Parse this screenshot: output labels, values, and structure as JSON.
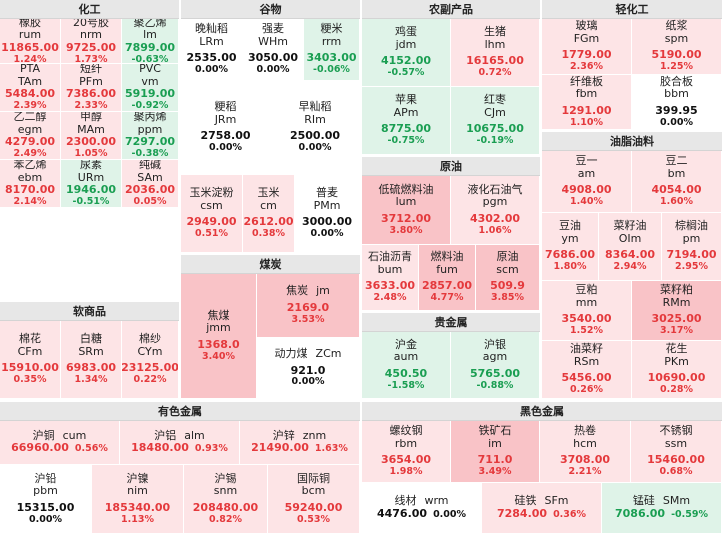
{
  "panels": [
    {
      "id": "chemical",
      "title": "化工",
      "box": [
        0,
        0,
        179,
        300
      ],
      "tiles": [
        {
          "name": "橡胶",
          "code": "rum",
          "price": "11865.00",
          "pct": "1.24%",
          "dir": "up",
          "layout": "v",
          "pos": [
            0,
            19,
            61,
            45
          ]
        },
        {
          "name": "20号胶",
          "code": "nrm",
          "price": "9725.00",
          "pct": "1.73%",
          "dir": "up",
          "layout": "v",
          "pos": [
            61,
            19,
            61,
            45
          ]
        },
        {
          "name": "聚乙烯",
          "code": "lm",
          "price": "7899.00",
          "pct": "-0.63%",
          "dir": "dn",
          "layout": "v",
          "pos": [
            122,
            19,
            57,
            45
          ]
        },
        {
          "name": "PTA",
          "code": "TAm",
          "price": "5484.00",
          "pct": "2.39%",
          "dir": "up",
          "layout": "v",
          "pos": [
            0,
            64,
            61,
            48
          ]
        },
        {
          "name": "短纤",
          "code": "PFm",
          "price": "7386.00",
          "pct": "2.33%",
          "dir": "up",
          "layout": "v",
          "pos": [
            61,
            64,
            61,
            48
          ]
        },
        {
          "name": "PVC",
          "code": "vm",
          "price": "5919.00",
          "pct": "-0.92%",
          "dir": "dn",
          "layout": "v",
          "pos": [
            122,
            64,
            57,
            48
          ]
        },
        {
          "name": "乙二醇",
          "code": "egm",
          "price": "4279.00",
          "pct": "2.49%",
          "dir": "up",
          "layout": "v",
          "pos": [
            0,
            112,
            61,
            48
          ]
        },
        {
          "name": "甲醇",
          "code": "MAm",
          "price": "2300.00",
          "pct": "1.05%",
          "dir": "up",
          "layout": "v",
          "pos": [
            61,
            112,
            61,
            48
          ]
        },
        {
          "name": "聚丙烯",
          "code": "ppm",
          "price": "7297.00",
          "pct": "-0.38%",
          "dir": "dn",
          "layout": "v",
          "pos": [
            122,
            112,
            57,
            48
          ]
        },
        {
          "name": "苯乙烯",
          "code": "ebm",
          "price": "8170.00",
          "pct": "2.14%",
          "dir": "up",
          "layout": "v",
          "pos": [
            0,
            160,
            61,
            48
          ]
        },
        {
          "name": "尿素",
          "code": "URm",
          "price": "1946.00",
          "pct": "-0.51%",
          "dir": "dn",
          "layout": "v",
          "pos": [
            61,
            160,
            61,
            48
          ]
        },
        {
          "name": "纯碱",
          "code": "SAm",
          "price": "2036.00",
          "pct": "0.05%",
          "dir": "up",
          "layout": "v",
          "pos": [
            122,
            160,
            57,
            48
          ]
        }
      ]
    },
    {
      "id": "soft",
      "title": "软商品",
      "box": [
        0,
        302,
        179,
        97
      ],
      "tiles": [
        {
          "name": "棉花",
          "code": "CFm",
          "price": "15910.00",
          "pct": "0.35%",
          "dir": "up",
          "layout": "v",
          "pos": [
            0,
            19,
            61,
            78
          ]
        },
        {
          "name": "白糖",
          "code": "SRm",
          "price": "6983.00",
          "pct": "1.34%",
          "dir": "up",
          "layout": "v",
          "pos": [
            61,
            19,
            61,
            78
          ]
        },
        {
          "name": "棉纱",
          "code": "CYm",
          "price": "23125.00",
          "pct": "0.22%",
          "dir": "up",
          "layout": "v",
          "pos": [
            122,
            19,
            57,
            78
          ]
        }
      ]
    },
    {
      "id": "grain",
      "title": "谷物",
      "box": [
        181,
        0,
        179,
        253
      ],
      "tiles": [
        {
          "name": "晚籼稻",
          "code": "LRm",
          "price": "2535.00",
          "pct": "0.00%",
          "dir": "fl",
          "layout": "v",
          "pos": [
            0,
            19,
            62,
            62
          ]
        },
        {
          "name": "强麦",
          "code": "WHm",
          "price": "3050.00",
          "pct": "0.00%",
          "dir": "fl",
          "layout": "v",
          "pos": [
            62,
            19,
            61,
            62
          ]
        },
        {
          "name": "粳米",
          "code": "rrm",
          "price": "3403.00",
          "pct": "-0.06%",
          "dir": "dn",
          "layout": "v",
          "pos": [
            123,
            19,
            56,
            62
          ]
        },
        {
          "name": "粳稻",
          "code": "JRm",
          "price": "2758.00",
          "pct": "0.00%",
          "dir": "fl",
          "layout": "v",
          "pos": [
            0,
            81,
            90,
            94
          ]
        },
        {
          "name": "早籼稻",
          "code": "RIm",
          "price": "2500.00",
          "pct": "0.00%",
          "dir": "fl",
          "layout": "v",
          "pos": [
            90,
            81,
            89,
            94
          ]
        },
        {
          "name": "玉米淀粉",
          "code": "csm",
          "price": "2949.00",
          "pct": "0.51%",
          "dir": "up",
          "layout": "v",
          "pos": [
            0,
            175,
            62,
            78
          ]
        },
        {
          "name": "玉米",
          "code": "cm",
          "price": "2612.00",
          "pct": "0.38%",
          "dir": "up",
          "layout": "v",
          "pos": [
            62,
            175,
            52,
            78
          ]
        },
        {
          "name": "普麦",
          "code": "PMm",
          "price": "3000.00",
          "pct": "0.00%",
          "dir": "fl",
          "layout": "v",
          "pos": [
            114,
            175,
            65,
            78
          ]
        }
      ]
    },
    {
      "id": "coal",
      "title": "煤炭",
      "box": [
        181,
        255,
        179,
        144
      ],
      "tiles": [
        {
          "name": "焦煤",
          "code": "jmm",
          "price": "1368.0",
          "pct": "3.40%",
          "dir": "up3",
          "layout": "v",
          "pos": [
            0,
            19,
            76,
            125
          ]
        },
        {
          "name": "焦炭",
          "code": "jm",
          "price": "2169.0",
          "pct": "3.53%",
          "dir": "up3",
          "layout": "h",
          "pos": [
            76,
            19,
            103,
            64
          ]
        },
        {
          "name": "动力煤",
          "code": "ZCm",
          "price": "921.0",
          "pct": "0.00%",
          "dir": "fl",
          "layout": "h",
          "pos": [
            76,
            83,
            103,
            61
          ]
        }
      ]
    },
    {
      "id": "agri",
      "title": "农副产品",
      "box": [
        362,
        0,
        178,
        155
      ],
      "tiles": [
        {
          "name": "鸡蛋",
          "code": "jdm",
          "price": "4152.00",
          "pct": "-0.57%",
          "dir": "dn",
          "layout": "v",
          "pos": [
            0,
            19,
            89,
            68
          ]
        },
        {
          "name": "生猪",
          "code": "lhm",
          "price": "16165.00",
          "pct": "0.72%",
          "dir": "up",
          "layout": "v",
          "pos": [
            89,
            19,
            89,
            68
          ]
        },
        {
          "name": "苹果",
          "code": "APm",
          "price": "8775.00",
          "pct": "-0.75%",
          "dir": "dn",
          "layout": "v",
          "pos": [
            0,
            87,
            89,
            68
          ]
        },
        {
          "name": "红枣",
          "code": "CJm",
          "price": "10675.00",
          "pct": "-0.19%",
          "dir": "dn",
          "layout": "v",
          "pos": [
            89,
            87,
            89,
            68
          ]
        }
      ]
    },
    {
      "id": "crude",
      "title": "原油",
      "box": [
        362,
        157,
        178,
        154
      ],
      "tiles": [
        {
          "name": "低硫燃料油",
          "code": "lum",
          "price": "3712.00",
          "pct": "3.80%",
          "dir": "up3",
          "layout": "v",
          "pos": [
            0,
            19,
            89,
            69
          ]
        },
        {
          "name": "液化石油气",
          "code": "pgm",
          "price": "4302.00",
          "pct": "1.06%",
          "dir": "up",
          "layout": "v",
          "pos": [
            89,
            19,
            89,
            69
          ]
        },
        {
          "name": "石油沥青",
          "code": "bum",
          "price": "3633.00",
          "pct": "2.48%",
          "dir": "up",
          "layout": "v",
          "pos": [
            0,
            88,
            57,
            66
          ]
        },
        {
          "name": "燃料油",
          "code": "fum",
          "price": "2857.00",
          "pct": "4.77%",
          "dir": "up3",
          "layout": "v",
          "pos": [
            57,
            88,
            57,
            66
          ]
        },
        {
          "name": "原油",
          "code": "scm",
          "price": "509.9",
          "pct": "3.85%",
          "dir": "up3",
          "layout": "v",
          "pos": [
            114,
            88,
            64,
            66
          ]
        }
      ]
    },
    {
      "id": "precious",
      "title": "贵金属",
      "box": [
        362,
        313,
        178,
        86
      ],
      "tiles": [
        {
          "name": "沪金",
          "code": "aum",
          "price": "450.50",
          "pct": "-1.58%",
          "dir": "dn",
          "layout": "v",
          "pos": [
            0,
            19,
            89,
            67
          ]
        },
        {
          "name": "沪银",
          "code": "agm",
          "price": "5765.00",
          "pct": "-0.88%",
          "dir": "dn",
          "layout": "v",
          "pos": [
            89,
            19,
            89,
            67
          ]
        }
      ]
    },
    {
      "id": "light",
      "title": "轻化工",
      "box": [
        542,
        0,
        180,
        130
      ],
      "tiles": [
        {
          "name": "玻璃",
          "code": "FGm",
          "price": "1779.00",
          "pct": "2.36%",
          "dir": "up",
          "layout": "v",
          "pos": [
            0,
            19,
            90,
            56
          ]
        },
        {
          "name": "纸浆",
          "code": "spm",
          "price": "5190.00",
          "pct": "1.25%",
          "dir": "up",
          "layout": "v",
          "pos": [
            90,
            19,
            90,
            56
          ]
        },
        {
          "name": "纤维板",
          "code": "fbm",
          "price": "1291.00",
          "pct": "1.10%",
          "dir": "up",
          "layout": "v",
          "pos": [
            0,
            75,
            90,
            55
          ]
        },
        {
          "name": "胶合板",
          "code": "bbm",
          "price": "399.95",
          "pct": "0.00%",
          "dir": "fl",
          "layout": "v",
          "pos": [
            90,
            75,
            90,
            55
          ]
        }
      ]
    },
    {
      "id": "oils",
      "title": "油脂油料",
      "box": [
        542,
        132,
        180,
        267
      ],
      "tiles": [
        {
          "name": "豆一",
          "code": "am",
          "price": "4908.00",
          "pct": "1.40%",
          "dir": "up",
          "layout": "v",
          "pos": [
            0,
            19,
            90,
            62
          ]
        },
        {
          "name": "豆二",
          "code": "bm",
          "price": "4054.00",
          "pct": "1.60%",
          "dir": "up",
          "layout": "v",
          "pos": [
            90,
            19,
            90,
            62
          ]
        },
        {
          "name": "豆油",
          "code": "ym",
          "price": "7686.00",
          "pct": "1.80%",
          "dir": "up",
          "layout": "v",
          "pos": [
            0,
            81,
            57,
            68
          ]
        },
        {
          "name": "菜籽油",
          "code": "OIm",
          "price": "8364.00",
          "pct": "2.94%",
          "dir": "up",
          "layout": "v",
          "pos": [
            57,
            81,
            63,
            68
          ]
        },
        {
          "name": "棕榈油",
          "code": "pm",
          "price": "7194.00",
          "pct": "2.95%",
          "dir": "up",
          "layout": "v",
          "pos": [
            120,
            81,
            60,
            68
          ]
        },
        {
          "name": "豆粕",
          "code": "mm",
          "price": "3540.00",
          "pct": "1.52%",
          "dir": "up",
          "layout": "v",
          "pos": [
            0,
            149,
            90,
            60
          ]
        },
        {
          "name": "菜籽粕",
          "code": "RMm",
          "price": "3025.00",
          "pct": "3.17%",
          "dir": "up3",
          "layout": "v",
          "pos": [
            90,
            149,
            90,
            60
          ]
        },
        {
          "name": "油菜籽",
          "code": "RSm",
          "price": "5456.00",
          "pct": "0.26%",
          "dir": "up",
          "layout": "v",
          "pos": [
            0,
            209,
            90,
            58
          ]
        },
        {
          "name": "花生",
          "code": "PKm",
          "price": "10690.00",
          "pct": "0.28%",
          "dir": "up",
          "layout": "v",
          "pos": [
            90,
            209,
            90,
            58
          ]
        }
      ]
    },
    {
      "id": "nonferrous",
      "title": "有色金属",
      "box": [
        0,
        402,
        360,
        132
      ],
      "tiles": [
        {
          "name": "沪铜",
          "code": "cum",
          "price": "66960.00",
          "pct": "0.56%",
          "dir": "up",
          "layout": "h",
          "pos": [
            0,
            19,
            120,
            44
          ]
        },
        {
          "name": "沪铝",
          "code": "alm",
          "price": "18480.00",
          "pct": "0.93%",
          "dir": "up",
          "layout": "h",
          "pos": [
            120,
            19,
            120,
            44
          ]
        },
        {
          "name": "沪锌",
          "code": "znm",
          "price": "21490.00",
          "pct": "1.63%",
          "dir": "up",
          "layout": "h",
          "pos": [
            240,
            19,
            120,
            44
          ]
        },
        {
          "name": "沪铅",
          "code": "pbm",
          "price": "15315.00",
          "pct": "0.00%",
          "dir": "fl",
          "layout": "v",
          "pos": [
            0,
            63,
            92,
            69
          ]
        },
        {
          "name": "沪镍",
          "code": "nim",
          "price": "185340.00",
          "pct": "1.13%",
          "dir": "up",
          "layout": "v",
          "pos": [
            92,
            63,
            92,
            69
          ]
        },
        {
          "name": "沪锡",
          "code": "snm",
          "price": "208480.00",
          "pct": "0.82%",
          "dir": "up",
          "layout": "v",
          "pos": [
            184,
            63,
            84,
            69
          ]
        },
        {
          "name": "国际铜",
          "code": "bcm",
          "price": "59240.00",
          "pct": "0.53%",
          "dir": "up",
          "layout": "v",
          "pos": [
            268,
            63,
            92,
            69
          ]
        }
      ]
    },
    {
      "id": "ferrous",
      "title": "黑色金属",
      "box": [
        362,
        402,
        360,
        132
      ],
      "tiles": [
        {
          "name": "螺纹钢",
          "code": "rbm",
          "price": "3654.00",
          "pct": "1.98%",
          "dir": "up",
          "layout": "v",
          "pos": [
            0,
            19,
            89,
            62
          ]
        },
        {
          "name": "铁矿石",
          "code": "im",
          "price": "711.0",
          "pct": "3.49%",
          "dir": "up3",
          "layout": "v",
          "pos": [
            89,
            19,
            89,
            62
          ]
        },
        {
          "name": "热卷",
          "code": "hcm",
          "price": "3708.00",
          "pct": "2.21%",
          "dir": "up",
          "layout": "v",
          "pos": [
            178,
            19,
            91,
            62
          ]
        },
        {
          "name": "不锈钢",
          "code": "ssm",
          "price": "15460.00",
          "pct": "0.68%",
          "dir": "up",
          "layout": "v",
          "pos": [
            269,
            19,
            91,
            62
          ]
        },
        {
          "name": "线材",
          "code": "wrm",
          "price": "4476.00",
          "pct": "0.00%",
          "dir": "fl",
          "layout": "h",
          "pos": [
            0,
            81,
            120,
            51
          ]
        },
        {
          "name": "硅铁",
          "code": "SFm",
          "price": "7284.00",
          "pct": "0.36%",
          "dir": "up",
          "layout": "h",
          "pos": [
            120,
            81,
            120,
            51
          ]
        },
        {
          "name": "锰硅",
          "code": "SMm",
          "price": "7086.00",
          "pct": "-0.59%",
          "dir": "dn",
          "layout": "h",
          "pos": [
            240,
            81,
            120,
            51
          ]
        }
      ]
    }
  ]
}
